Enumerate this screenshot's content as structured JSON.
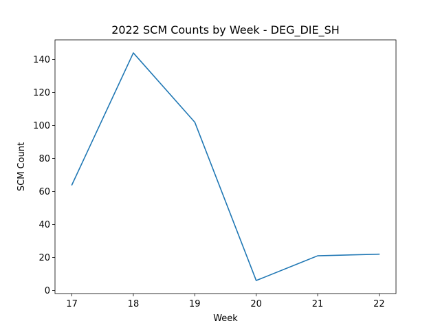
{
  "chart_data": {
    "type": "line",
    "title": "2022 SCM Counts by Week - DEG_DIE_SH",
    "xlabel": "Week",
    "ylabel": "SCM Count",
    "x": [
      17,
      18,
      19,
      20,
      21,
      22
    ],
    "series": [
      {
        "values": [
          64,
          144,
          102,
          6,
          21,
          22
        ],
        "color": "#1f77b4"
      }
    ],
    "xticks": [
      17,
      18,
      19,
      20,
      21,
      22
    ],
    "yticks": [
      0,
      20,
      40,
      60,
      80,
      100,
      120,
      140
    ],
    "xlim": [
      16.725,
      22.275
    ],
    "ylim": [
      -1.9,
      151.9
    ],
    "grid": false,
    "legend": false
  }
}
